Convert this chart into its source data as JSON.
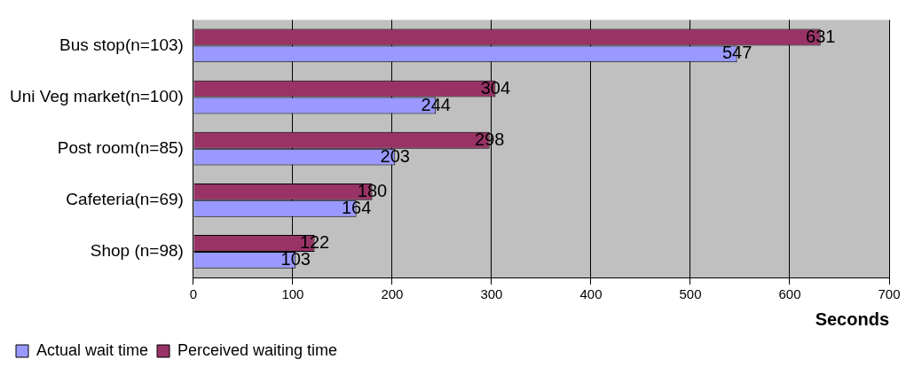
{
  "chart_data": {
    "type": "bar",
    "orientation": "horizontal",
    "xlabel": "Seconds",
    "categories": [
      "Bus stop(n=103)",
      "Uni Veg market(n=100)",
      "Post room(n=85)",
      "Cafeteria(n=69)",
      "Shop (n=98)"
    ],
    "series": [
      {
        "name": "Actual wait time",
        "color": "#9999ff",
        "values": [
          547,
          244,
          203,
          164,
          103
        ]
      },
      {
        "name": "Perceived waiting time",
        "color": "#993366",
        "values": [
          631,
          304,
          298,
          180,
          122
        ]
      }
    ],
    "xlim": [
      0,
      700
    ],
    "xticks": [
      0,
      100,
      200,
      300,
      400,
      500,
      600,
      700
    ],
    "grid": "x",
    "legend": "bottom left",
    "data_labels": true
  }
}
